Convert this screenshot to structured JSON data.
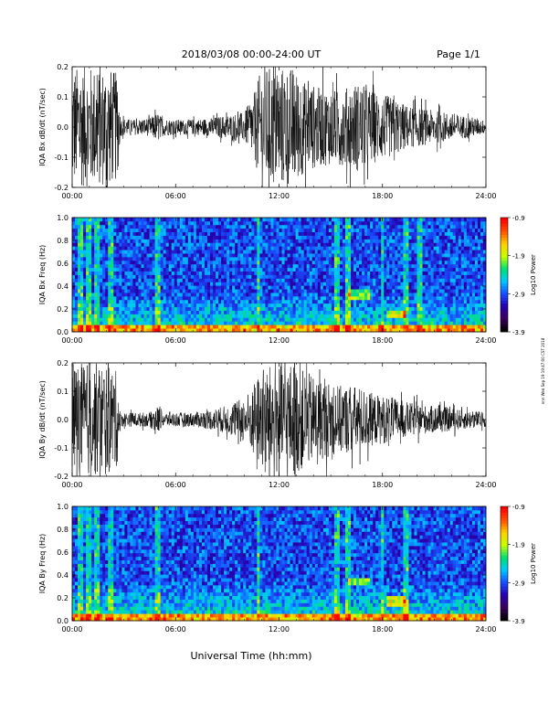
{
  "header": {
    "date_range": "2018/03/08   00:00-24:00 UT",
    "page": "Page 1/1"
  },
  "footer": {
    "xlabel": "Universal Time (hh:mm)"
  },
  "side_stamp": "nnn Wed Sep 19 19:47:00 CST 2018",
  "colors": {
    "trace": "#000000",
    "colormap": [
      "#000000",
      "#3a0060",
      "#2600b0",
      "#1850ff",
      "#00c8ff",
      "#00e070",
      "#c8ff00",
      "#ffd000",
      "#ff5000",
      "#ff0000"
    ]
  },
  "chart_data": [
    {
      "type": "line",
      "title": "IQA Bx dB/dt (nT/sec)",
      "ylabel": "IQA Bx dB/dt (nT/sec)",
      "ylim": [
        -0.2,
        0.2
      ],
      "yticks": [
        "-0.2",
        "-0.1",
        "0.0",
        "0.1",
        "0.2"
      ],
      "xlim": [
        "00:00",
        "24:00"
      ],
      "xticks": [
        "00:00",
        "06:00",
        "12:00",
        "18:00",
        "24:00"
      ],
      "envelope": {
        "x_hours": [
          0,
          0.5,
          1.2,
          2.0,
          2.6,
          2.8,
          3.5,
          4.5,
          5.0,
          5.2,
          6.0,
          7.0,
          8.0,
          9.0,
          10.0,
          10.5,
          11.0,
          12.0,
          12.8,
          13.5,
          14.5,
          15.5,
          16.5,
          17.5,
          18.5,
          19.5,
          20.5,
          21.5,
          22.5,
          23.5,
          24.0
        ],
        "amplitude": [
          0.2,
          0.2,
          0.2,
          0.2,
          0.18,
          0.03,
          0.025,
          0.03,
          0.05,
          0.03,
          0.025,
          0.025,
          0.03,
          0.04,
          0.05,
          0.1,
          0.2,
          0.2,
          0.2,
          0.15,
          0.13,
          0.12,
          0.15,
          0.12,
          0.1,
          0.07,
          0.06,
          0.05,
          0.04,
          0.03,
          0.02
        ]
      }
    },
    {
      "type": "heatmap",
      "title": "IQA Bx Freq (Hz)",
      "ylabel": "IQA Bx Freq (Hz)",
      "ylim": [
        0.0,
        1.0
      ],
      "yticks": [
        "0.0",
        "0.2",
        "0.4",
        "0.6",
        "0.8",
        "1.0"
      ],
      "xlim": [
        "00:00",
        "24:00"
      ],
      "xticks": [
        "00:00",
        "06:00",
        "12:00",
        "18:00",
        "24:00"
      ],
      "colorbar": {
        "label": "Log10 Power",
        "range": [
          -3.9,
          -0.9
        ],
        "ticks": [
          "-0.9",
          "-1.9",
          "-2.9",
          "-3.9"
        ]
      },
      "features": {
        "low_freq_band_hz": 0.05,
        "bright_columns_hours": [
          0.5,
          1.0,
          1.5,
          2.2,
          5.0,
          10.8,
          15.3,
          16.0,
          18.0,
          19.3,
          20.2
        ],
        "tones": [
          {
            "start_h": 16.0,
            "end_h": 17.2,
            "freq_hz": 0.33
          },
          {
            "start_h": 18.2,
            "end_h": 19.3,
            "freq_hz": 0.16
          }
        ]
      }
    },
    {
      "type": "line",
      "title": "IQA By dB/dt (nT/sec)",
      "ylabel": "IQA By dB/dt (nT/sec)",
      "ylim": [
        -0.2,
        0.2
      ],
      "yticks": [
        "-0.2",
        "-0.1",
        "0.0",
        "0.1",
        "0.2"
      ],
      "xlim": [
        "00:00",
        "24:00"
      ],
      "xticks": [
        "00:00",
        "06:00",
        "12:00",
        "18:00",
        "24:00"
      ],
      "envelope": {
        "x_hours": [
          0,
          0.5,
          1.2,
          2.0,
          2.6,
          2.8,
          3.5,
          4.5,
          5.0,
          5.2,
          6.0,
          7.0,
          8.0,
          9.0,
          10.0,
          10.5,
          11.0,
          12.0,
          12.8,
          13.5,
          14.5,
          15.5,
          16.5,
          17.5,
          18.5,
          19.5,
          20.5,
          21.5,
          22.5,
          23.5,
          24.0
        ],
        "amplitude": [
          0.2,
          0.2,
          0.2,
          0.2,
          0.17,
          0.025,
          0.025,
          0.025,
          0.05,
          0.025,
          0.025,
          0.025,
          0.035,
          0.05,
          0.08,
          0.12,
          0.18,
          0.2,
          0.2,
          0.17,
          0.14,
          0.12,
          0.12,
          0.09,
          0.08,
          0.06,
          0.05,
          0.045,
          0.035,
          0.03,
          0.025
        ]
      }
    },
    {
      "type": "heatmap",
      "title": "IQA By Freq (Hz)",
      "ylabel": "IQA By Freq (Hz)",
      "ylim": [
        0.0,
        1.0
      ],
      "yticks": [
        "0.0",
        "0.2",
        "0.4",
        "0.6",
        "0.8",
        "1.0"
      ],
      "xlim": [
        "00:00",
        "24:00"
      ],
      "xticks": [
        "00:00",
        "06:00",
        "12:00",
        "18:00",
        "24:00"
      ],
      "colorbar": {
        "label": "Log10 Power",
        "range": [
          -3.9,
          -0.9
        ],
        "ticks": [
          "-0.9",
          "-1.9",
          "-2.9",
          "-3.9"
        ]
      },
      "features": {
        "low_freq_band_hz": 0.05,
        "bright_columns_hours": [
          0.5,
          1.0,
          1.5,
          2.2,
          5.0,
          10.8,
          15.3,
          16.0,
          18.0,
          19.3
        ],
        "tones": [
          {
            "start_h": 16.0,
            "end_h": 17.2,
            "freq_hz": 0.35
          },
          {
            "start_h": 18.3,
            "end_h": 19.4,
            "freq_hz": 0.17
          }
        ]
      }
    }
  ]
}
